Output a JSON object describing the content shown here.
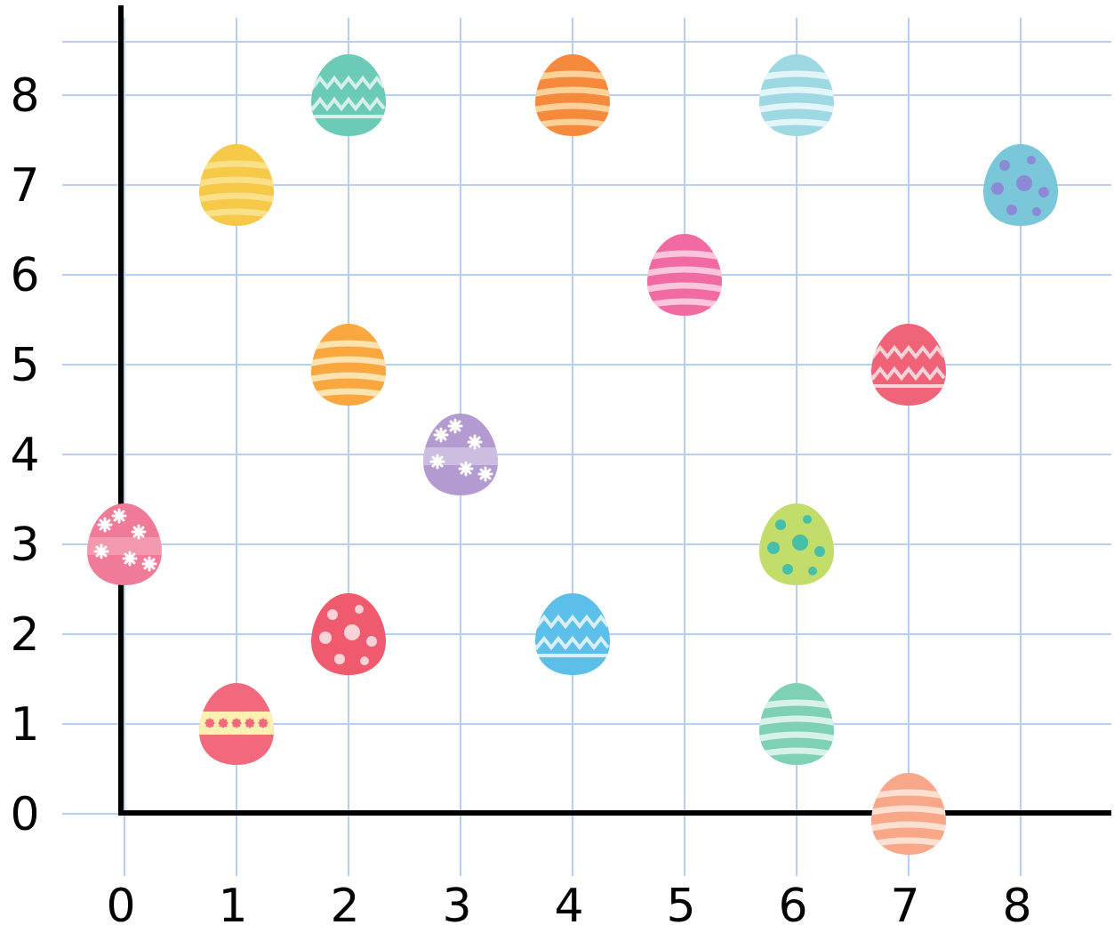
{
  "chart_data": {
    "type": "scatter",
    "title": "",
    "xlabel": "",
    "ylabel": "",
    "xlim": [
      0,
      8
    ],
    "ylim": [
      0,
      8
    ],
    "grid": true,
    "x_ticks": [
      "0",
      "1",
      "2",
      "3",
      "4",
      "5",
      "6",
      "7",
      "8"
    ],
    "y_ticks": [
      "0",
      "1",
      "2",
      "3",
      "4",
      "5",
      "6",
      "7",
      "8"
    ],
    "points": [
      {
        "x": 0,
        "y": 3,
        "pattern": "flowers",
        "color": "#f07b98",
        "band": "#fbd3dd"
      },
      {
        "x": 1,
        "y": 1,
        "pattern": "band",
        "color": "#f2687c",
        "band": "#fdf0b0"
      },
      {
        "x": 1,
        "y": 7,
        "pattern": "stripes",
        "color": "#f7c948",
        "band": "#fbe08a"
      },
      {
        "x": 2,
        "y": 2,
        "pattern": "dots",
        "color": "#ef5a6f",
        "band": "#fbd2d8"
      },
      {
        "x": 2,
        "y": 5,
        "pattern": "stripes",
        "color": "#f9a73e",
        "band": "#fde3b0"
      },
      {
        "x": 2,
        "y": 8,
        "pattern": "zigzag",
        "color": "#6ccbb7",
        "band": "#d5f0ea"
      },
      {
        "x": 3,
        "y": 4,
        "pattern": "flowers",
        "color": "#b39ad0",
        "band": "#ffffff"
      },
      {
        "x": 4,
        "y": 2,
        "pattern": "zigzag",
        "color": "#5cbfe9",
        "band": "#d8f0fb"
      },
      {
        "x": 4,
        "y": 8,
        "pattern": "stripes",
        "color": "#f58a3c",
        "band": "#fdd29a"
      },
      {
        "x": 5,
        "y": 6,
        "pattern": "stripes",
        "color": "#f16ba2",
        "band": "#fbc6db"
      },
      {
        "x": 6,
        "y": 1,
        "pattern": "stripes",
        "color": "#7fd1b5",
        "band": "#d9f2e9"
      },
      {
        "x": 6,
        "y": 3,
        "pattern": "dots",
        "color": "#c2dd6a",
        "band": "#48bfa8"
      },
      {
        "x": 6,
        "y": 8,
        "pattern": "stripes",
        "color": "#9ed9e3",
        "band": "#e2f5f8"
      },
      {
        "x": 7,
        "y": 0,
        "pattern": "stripes",
        "color": "#f8a888",
        "band": "#fde0d2"
      },
      {
        "x": 7,
        "y": 5,
        "pattern": "zigzag",
        "color": "#ef6478",
        "band": "#fbd4da"
      },
      {
        "x": 8,
        "y": 7,
        "pattern": "dots",
        "color": "#79c7d8",
        "band": "#8c8ad6"
      }
    ]
  },
  "colors": {
    "grid": "#b7cff0",
    "axis": "#000000",
    "background": "#ffffff"
  }
}
